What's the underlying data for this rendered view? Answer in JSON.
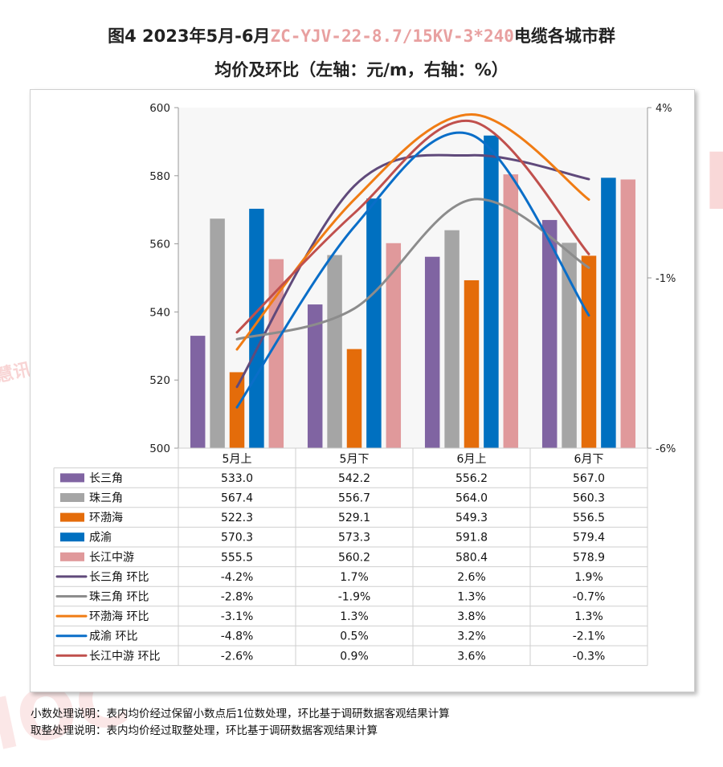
{
  "title": {
    "line1_prefix": "图4 2023年5月-6月",
    "line1_model": "ZC-YJV-22-8.7/15KV-3*240",
    "line1_suffix": "电缆各城市群",
    "line2": "均价及环比（左轴：元/m，右轴：%）"
  },
  "watermark": {
    "brand": "IOC",
    "brand_cn": "慧讯网"
  },
  "notes": [
    "小数处理说明：表内均价经过保留小数点后1位数处理，环比基于调研数据客观结果计算",
    "取整处理说明：表内均价经过取整处理，环比基于调研数据客观结果计算"
  ],
  "colors": {
    "长三角": "#8064a2",
    "珠三角": "#a5a5a5",
    "环渤海": "#e46c0a",
    "成渝": "#0070c0",
    "长江中游": "#e0999b",
    "长三角 环比": "#604a7b",
    "珠三角 环比": "#8c8c8c",
    "环渤海 环比": "#f07c14",
    "成渝 环比": "#0a6ec8",
    "长江中游 环比": "#c0504d",
    "plot_bg": "#f7f7f7"
  },
  "chart_data": {
    "type": "bar",
    "categories": [
      "5月上",
      "5月下",
      "6月上",
      "6月下"
    ],
    "left_axis": {
      "ylim": [
        500,
        600
      ],
      "ticks": [
        "500",
        "520",
        "540",
        "560",
        "580",
        "600"
      ]
    },
    "right_axis": {
      "ylim": [
        -6,
        4
      ],
      "ticks": [
        "-6%",
        "-1%",
        "4%"
      ]
    },
    "series": [
      {
        "name": "长三角",
        "kind": "bar",
        "values": [
          533.0,
          542.2,
          556.2,
          567.0
        ],
        "labels": [
          "533.0",
          "542.2",
          "556.2",
          "567.0"
        ]
      },
      {
        "name": "珠三角",
        "kind": "bar",
        "values": [
          567.4,
          556.7,
          564.0,
          560.3
        ],
        "labels": [
          "567.4",
          "556.7",
          "564.0",
          "560.3"
        ]
      },
      {
        "name": "环渤海",
        "kind": "bar",
        "values": [
          522.3,
          529.1,
          549.3,
          556.5
        ],
        "labels": [
          "522.3",
          "529.1",
          "549.3",
          "556.5"
        ]
      },
      {
        "name": "成渝",
        "kind": "bar",
        "values": [
          570.3,
          573.3,
          591.8,
          579.4
        ],
        "labels": [
          "570.3",
          "573.3",
          "591.8",
          "579.4"
        ]
      },
      {
        "name": "长江中游",
        "kind": "bar",
        "values": [
          555.5,
          560.2,
          580.4,
          578.9
        ],
        "labels": [
          "555.5",
          "560.2",
          "580.4",
          "578.9"
        ]
      },
      {
        "name": "长三角 环比",
        "kind": "line",
        "values": [
          -4.2,
          1.7,
          2.6,
          1.9
        ],
        "labels": [
          "-4.2%",
          "1.7%",
          "2.6%",
          "1.9%"
        ]
      },
      {
        "name": "珠三角 环比",
        "kind": "line",
        "values": [
          -2.8,
          -1.9,
          1.3,
          -0.7
        ],
        "labels": [
          "-2.8%",
          "-1.9%",
          "1.3%",
          "-0.7%"
        ]
      },
      {
        "name": "环渤海 环比",
        "kind": "line",
        "values": [
          -3.1,
          1.3,
          3.8,
          1.3
        ],
        "labels": [
          "-3.1%",
          "1.3%",
          "3.8%",
          "1.3%"
        ]
      },
      {
        "name": "成渝 环比",
        "kind": "line",
        "values": [
          -4.8,
          0.5,
          3.2,
          -2.1
        ],
        "labels": [
          "-4.8%",
          "0.5%",
          "3.2%",
          "-2.1%"
        ]
      },
      {
        "name": "长江中游 环比",
        "kind": "line",
        "values": [
          -2.6,
          0.9,
          3.6,
          -0.3
        ],
        "labels": [
          "-2.6%",
          "0.9%",
          "3.6%",
          "-0.3%"
        ]
      }
    ]
  }
}
